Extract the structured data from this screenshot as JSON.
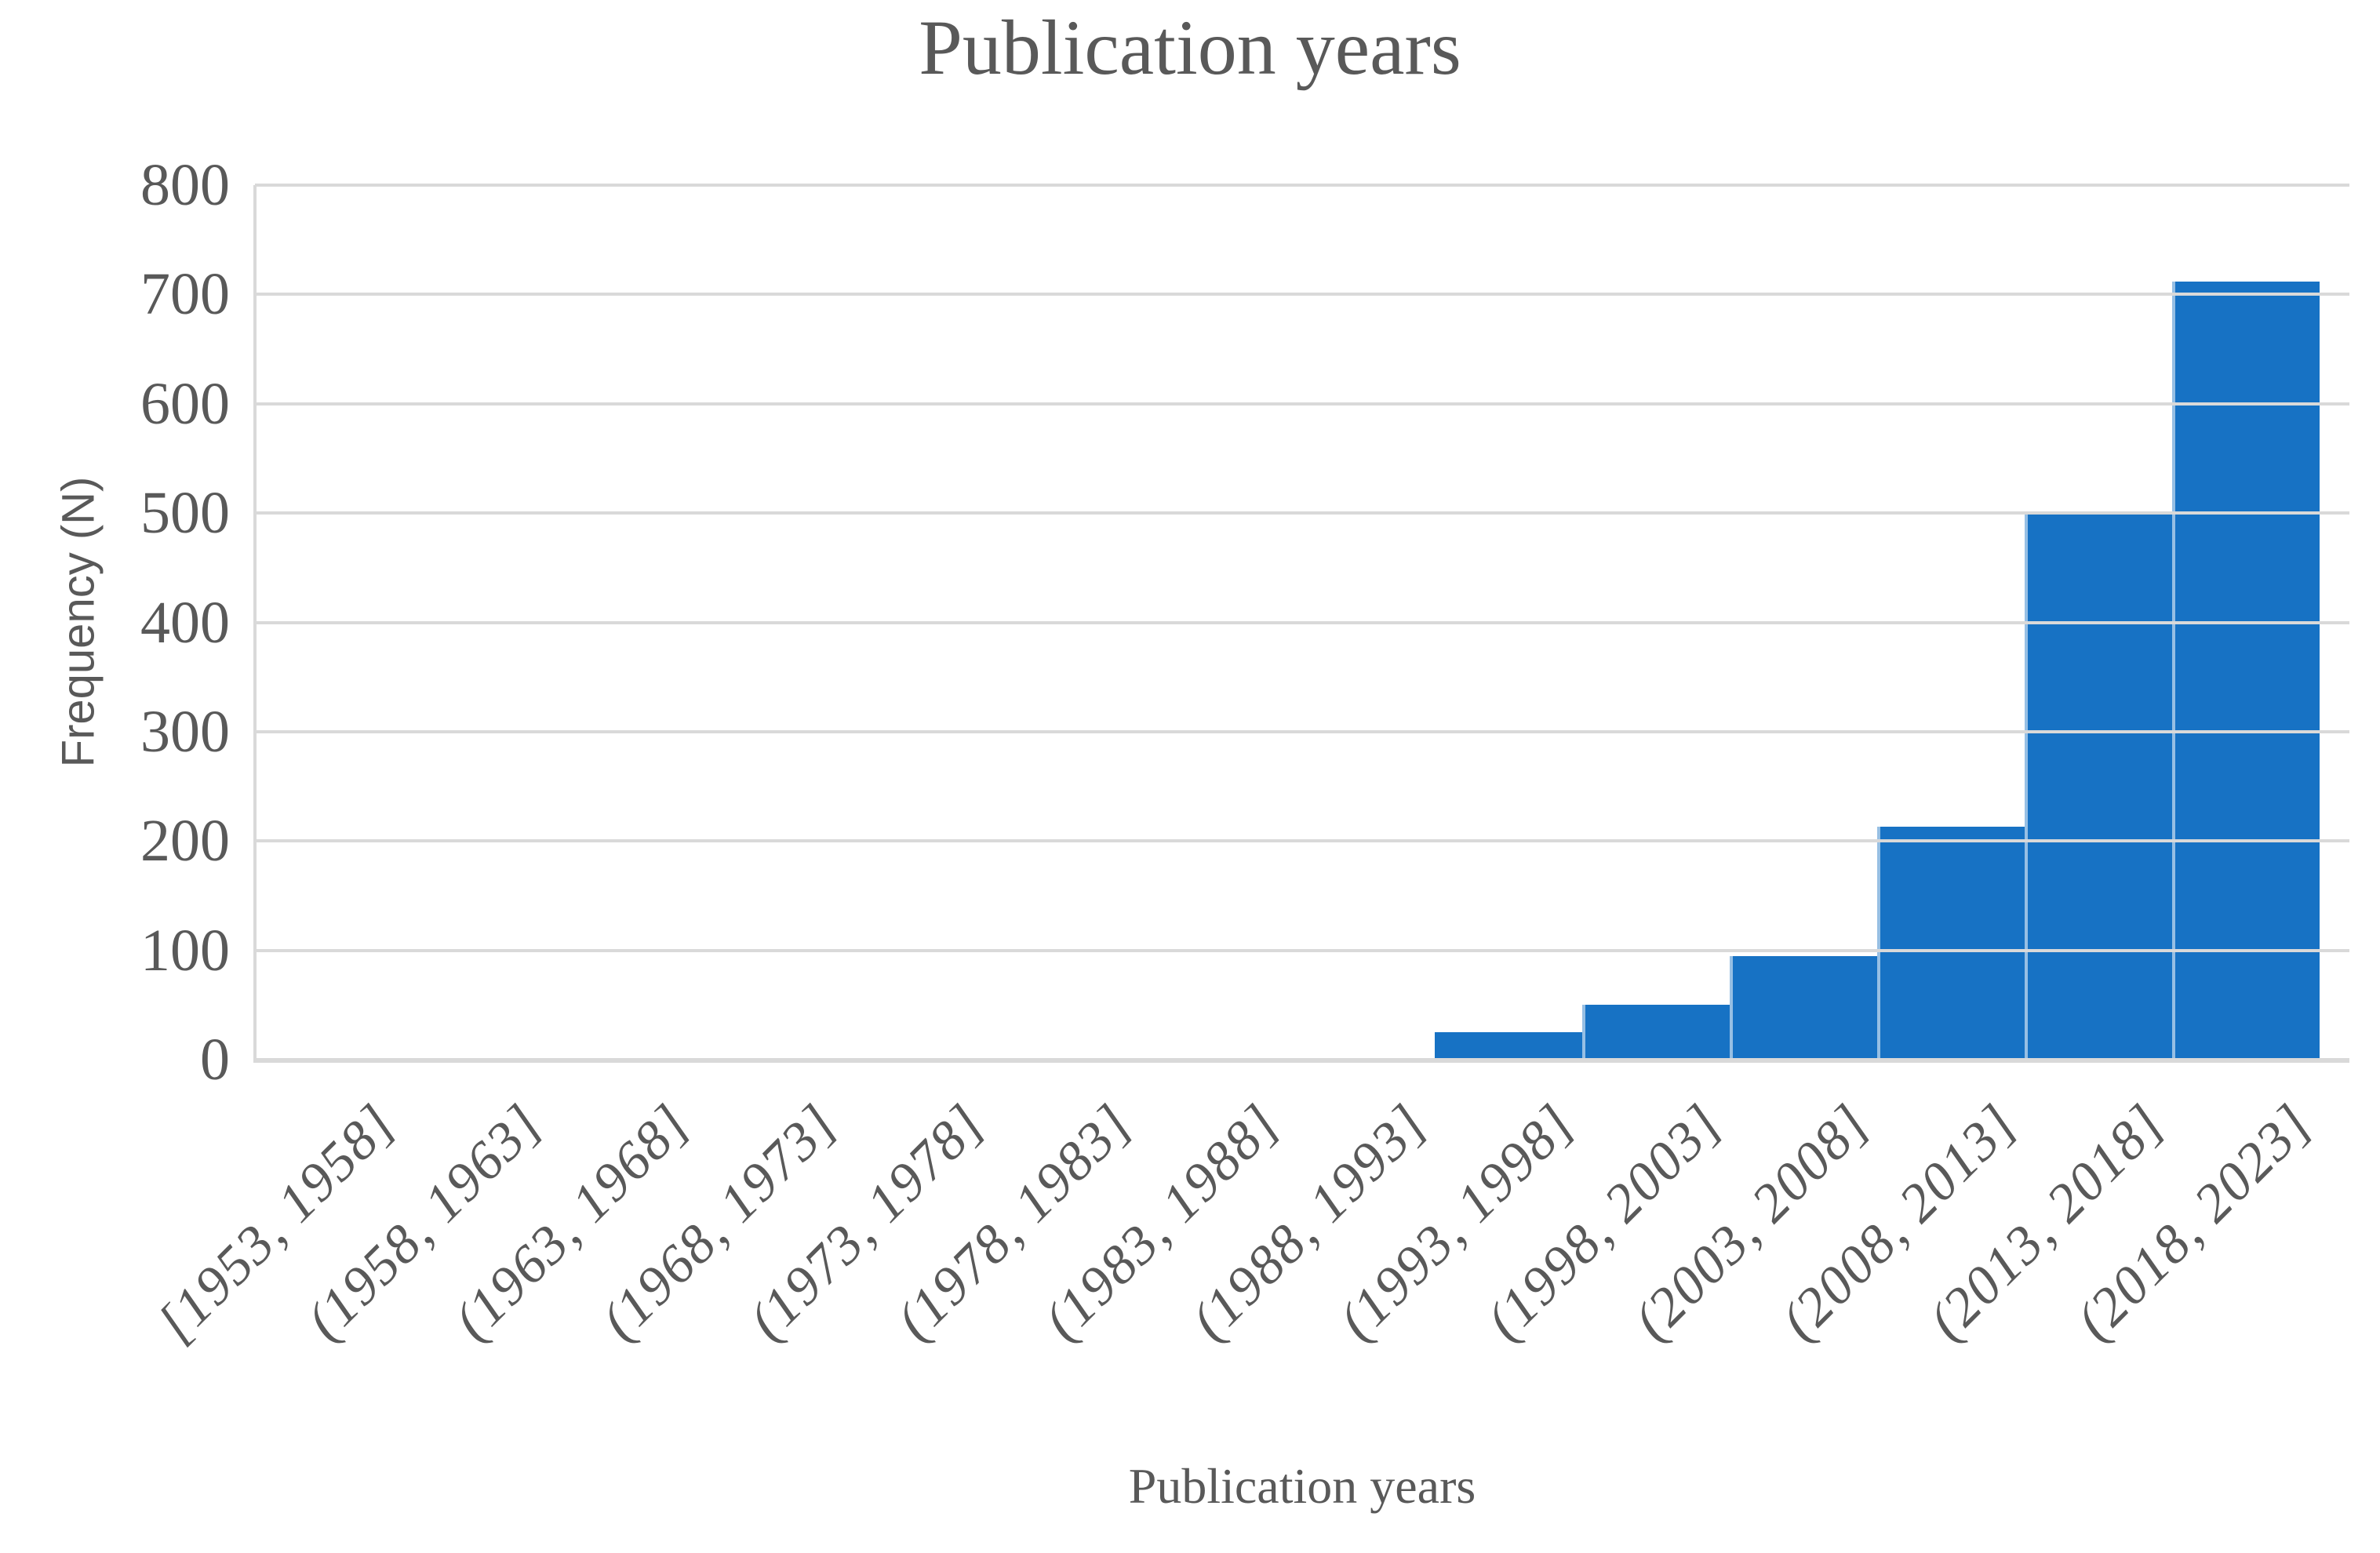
{
  "title": "Publication years",
  "colors": {
    "bar": "#1772C4",
    "bar_separator": "rgba(255,255,255,0.55)",
    "grid": "#D9D9D9",
    "text": "#595959"
  },
  "chart_data": {
    "type": "bar",
    "title": "Publication years",
    "xlabel": "Publication years",
    "ylabel": "Frequency (N)",
    "ylim": [
      0,
      800
    ],
    "yticks": [
      0,
      100,
      200,
      300,
      400,
      500,
      600,
      700,
      800
    ],
    "grid": "horizontal",
    "legend": "none",
    "categories": [
      "[1953, 1958]",
      "(1958, 1963]",
      "(1963, 1968]",
      "(1968, 1973]",
      "(1973, 1978]",
      "(1978, 1983]",
      "(1983, 1988]",
      "(1988, 1993]",
      "(1993, 1998]",
      "(1998, 2003]",
      "(2003, 2008]",
      "(2008, 2013]",
      "(2013, 2018]",
      "(2018, 2023]"
    ],
    "values": [
      0,
      0,
      0,
      0,
      0,
      0,
      0,
      0,
      25,
      50,
      95,
      213,
      500,
      712
    ]
  }
}
